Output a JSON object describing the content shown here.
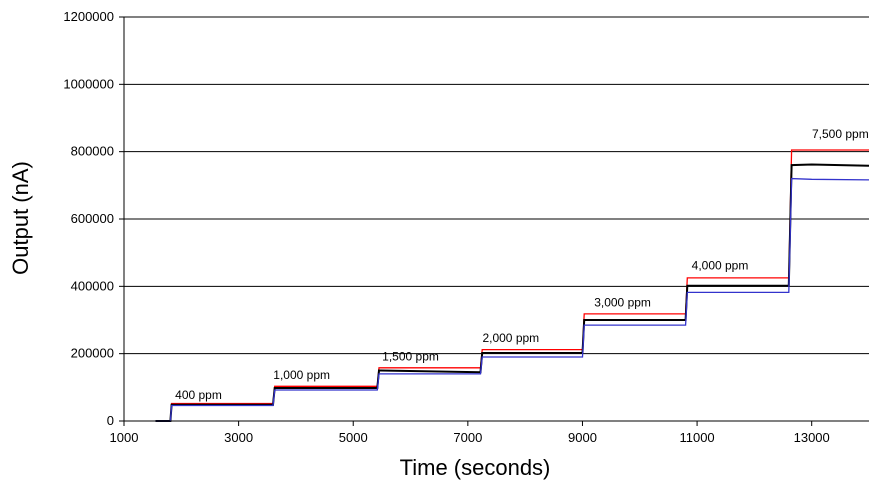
{
  "chart_data": {
    "type": "line",
    "title": "",
    "xlabel": "Time  (seconds)",
    "ylabel": "Output (nA)",
    "xlim": [
      1000,
      14000
    ],
    "ylim": [
      0,
      1200000
    ],
    "grid": "horizontal",
    "legend": "none",
    "x_ticks": [
      "1000",
      "3000",
      "5000",
      "7000",
      "9000",
      "11000",
      "13000"
    ],
    "y_ticks": [
      "0",
      "200000",
      "400000",
      "600000",
      "800000",
      "1000000",
      "1200000"
    ],
    "annotations": [
      {
        "text": "400 ppm",
        "x": 2300,
        "y": 65000
      },
      {
        "text": "1,000 ppm",
        "x": 4100,
        "y": 125000
      },
      {
        "text": "1,500 ppm",
        "x": 6000,
        "y": 180000
      },
      {
        "text": "2,000 ppm",
        "x": 7750,
        "y": 235000
      },
      {
        "text": "3,000 ppm",
        "x": 9700,
        "y": 340000
      },
      {
        "text": "4,000 ppm",
        "x": 11400,
        "y": 450000
      },
      {
        "text": "7,500 ppm",
        "x": 13500,
        "y": 840000
      }
    ],
    "series": [
      {
        "color": "#ff0000",
        "x": [
          1550,
          1810,
          1830,
          3600,
          3630,
          5420,
          5450,
          7220,
          7250,
          9000,
          9030,
          10800,
          10830,
          12600,
          12650,
          14000
        ],
        "y": [
          0,
          0,
          52000,
          52000,
          103000,
          103000,
          158000,
          158000,
          212000,
          212000,
          318000,
          318000,
          425000,
          425000,
          805000,
          805000
        ]
      },
      {
        "color": "#000000",
        "x": [
          1550,
          1810,
          1830,
          3600,
          3630,
          5420,
          5450,
          7220,
          7250,
          9000,
          9030,
          10800,
          10830,
          12600,
          12650,
          13000,
          14000
        ],
        "y": [
          0,
          0,
          48000,
          48000,
          98000,
          98000,
          150000,
          145000,
          202000,
          202000,
          300000,
          300000,
          402000,
          402000,
          760000,
          762000,
          758000
        ]
      },
      {
        "color": "#3333cc",
        "x": [
          1550,
          1810,
          1830,
          3600,
          3630,
          5420,
          5450,
          7220,
          7250,
          9000,
          9030,
          10800,
          10830,
          12600,
          12650,
          13000,
          14000
        ],
        "y": [
          0,
          0,
          46000,
          46000,
          92000,
          92000,
          140000,
          140000,
          190000,
          190000,
          285000,
          285000,
          382000,
          382000,
          720000,
          718000,
          716000
        ]
      }
    ]
  }
}
